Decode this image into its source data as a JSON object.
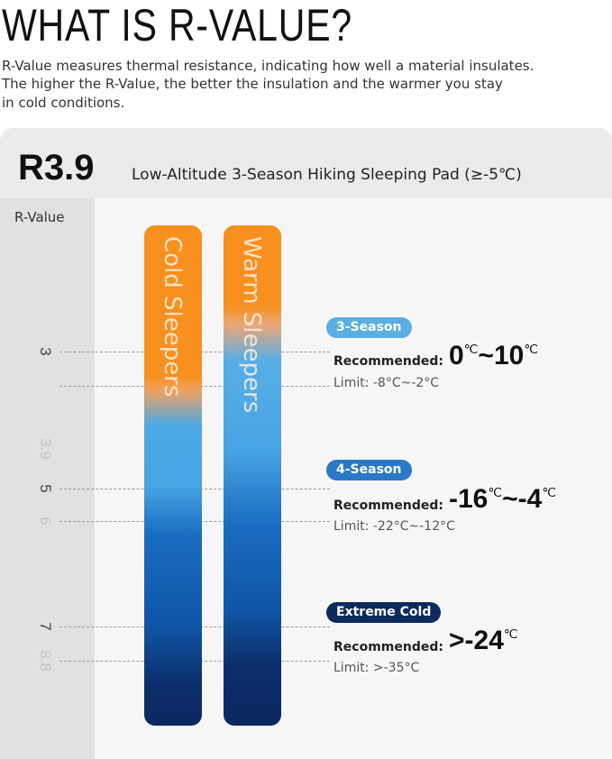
{
  "title": "WHAT IS R-VALUE?",
  "intro": [
    "R-Value measures thermal resistance, indicating how well a material insulates.",
    "The higher the R-Value, the better the insulation and the warmer you stay",
    "in cold conditions."
  ],
  "card": {
    "rating": "R3.9",
    "product": "Low-Altitude 3-Season Hiking Sleeping Pad (≥-5℃)",
    "axis_label": "R-Value",
    "scale": [
      "3",
      "3.9",
      "5",
      "6",
      "7",
      "8.8"
    ],
    "bars": [
      "Cold Sleepers",
      "Warm Sleepers"
    ],
    "sections": [
      {
        "badge": "3-Season",
        "recommended": "Recommended:",
        "temp": [
          {
            "text": "0"
          },
          {
            "text": "℃",
            "sup": true
          },
          {
            "text": "~"
          },
          {
            "text": "10"
          },
          {
            "text": "℃",
            "sup": true
          }
        ],
        "limit": "Limit: -8°C~-2°C"
      },
      {
        "badge": "4-Season",
        "recommended": "Recommended:",
        "temp": [
          {
            "text": "-16"
          },
          {
            "text": "℃",
            "sup": true
          },
          {
            "text": "~"
          },
          {
            "text": "-4"
          },
          {
            "text": "℃",
            "sup": true
          }
        ],
        "limit": "Limit: -22°C~-12°C"
      },
      {
        "badge": "Extreme Cold",
        "recommended": "Recommended:",
        "temp": [
          {
            "text": ">-24"
          },
          {
            "text": "℃",
            "sup": true
          }
        ],
        "limit": "Limit: >-35°C"
      }
    ]
  }
}
